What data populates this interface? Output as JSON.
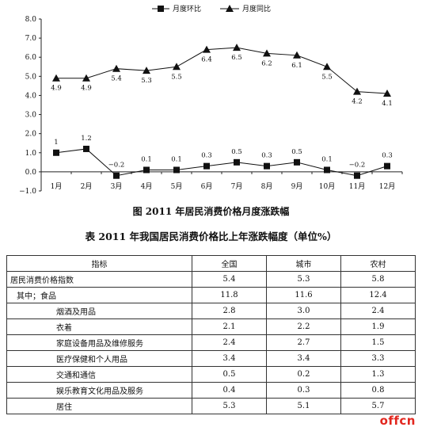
{
  "chart_data": {
    "type": "line",
    "categories": [
      "1月",
      "2月",
      "3月",
      "4月",
      "5月",
      "6月",
      "7月",
      "8月",
      "9月",
      "10月",
      "11月",
      "12月"
    ],
    "series": [
      {
        "name": "月度环比",
        "marker": "square",
        "values": [
          1,
          1.2,
          -0.2,
          0.1,
          0.1,
          0.3,
          0.5,
          0.3,
          0.5,
          0.1,
          -0.2,
          0.3
        ],
        "labels": [
          "1",
          "1.2",
          "−0.2",
          "0.1",
          "0.1",
          "0.3",
          "0.5",
          "0.3",
          "0.5",
          "0.1",
          "−0.2",
          "0.3"
        ]
      },
      {
        "name": "月度同比",
        "marker": "triangle",
        "values": [
          4.9,
          4.9,
          5.4,
          5.3,
          5.5,
          6.4,
          6.5,
          6.2,
          6.1,
          5.5,
          4.2,
          4.1
        ],
        "labels": [
          "4.9",
          "4.9",
          "5.4",
          "5.3",
          "5.5",
          "6.4",
          "6.5",
          "6.2",
          "6.1",
          "5.5",
          "4.2",
          "4.1"
        ]
      }
    ],
    "ylim": [
      -1,
      8
    ],
    "yticks": [
      "8.0",
      "7.0",
      "6.0",
      "5.0",
      "4.0",
      "3.0",
      "2.0",
      "1.0",
      "0.0",
      "−1.0"
    ],
    "legend_position": "top-center",
    "grid": false
  },
  "figure_caption": "图 2011 年居民消费价格月度涨跌幅",
  "table_title": "表 2011 年我国居民消费价格比上年涨跌幅度（单位%）",
  "table": {
    "headers": [
      "指标",
      "全国",
      "城市",
      "农村"
    ],
    "rows": [
      {
        "label": "居民消费价格指数",
        "indent": 0,
        "values": [
          "5.4",
          "5.3",
          "5.8"
        ]
      },
      {
        "label": "其中；食品",
        "indent": 1,
        "values": [
          "11.8",
          "11.6",
          "12.4"
        ]
      },
      {
        "label": "烟酒及用品",
        "indent": 2,
        "values": [
          "2.8",
          "3.0",
          "2.4"
        ]
      },
      {
        "label": "衣着",
        "indent": 2,
        "values": [
          "2.1",
          "2.2",
          "1.9"
        ]
      },
      {
        "label": "家庭设备用品及维修服务",
        "indent": 2,
        "values": [
          "2.4",
          "2.7",
          "1.5"
        ]
      },
      {
        "label": "医疗保健和个人用品",
        "indent": 2,
        "values": [
          "3.4",
          "3.4",
          "3.3"
        ]
      },
      {
        "label": "交通和通信",
        "indent": 2,
        "values": [
          "0.5",
          "0.2",
          "1.3"
        ]
      },
      {
        "label": "娱乐教育文化用品及服务",
        "indent": 2,
        "values": [
          "0.4",
          "0.3",
          "0.8"
        ]
      },
      {
        "label": "居住",
        "indent": 2,
        "values": [
          "5.3",
          "5.1",
          "5.7"
        ]
      }
    ]
  },
  "watermark": "offcn"
}
